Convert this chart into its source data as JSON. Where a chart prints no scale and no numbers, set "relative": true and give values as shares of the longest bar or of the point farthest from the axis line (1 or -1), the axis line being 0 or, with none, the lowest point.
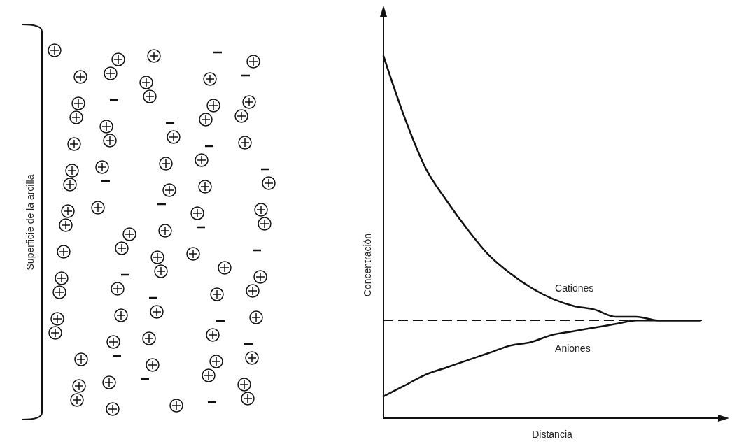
{
  "chart_data": {
    "type": "line",
    "relative": true,
    "xlabel": "Distancia",
    "ylabel": "Concentración",
    "categories": [
      null,
      null,
      null,
      null,
      null,
      null,
      null,
      null,
      null,
      null,
      null,
      null,
      null,
      null,
      null,
      null
    ],
    "series": [
      {
        "name": "Cationes",
        "color": "#111111",
        "values": [
          1.0,
          0.83,
          0.69,
          0.6,
          0.52,
          0.45,
          0.4,
          0.36,
          0.33,
          0.31,
          0.3,
          0.28,
          0.28,
          0.27,
          0.27,
          0.27
        ]
      },
      {
        "name": "Aniones",
        "color": "#111111",
        "values": [
          0.06,
          0.09,
          0.12,
          0.14,
          0.16,
          0.18,
          0.2,
          0.21,
          0.23,
          0.24,
          0.25,
          0.26,
          0.27,
          0.27,
          0.27,
          0.27
        ]
      }
    ],
    "ref_lines": [
      {
        "axis": "y",
        "value": 0.27,
        "line_style": "dashed",
        "color": "#111111"
      }
    ],
    "annotations": [
      "Superficie de la arcilla"
    ],
    "legend": false,
    "line_style": "solid",
    "marker": "none"
  }
}
